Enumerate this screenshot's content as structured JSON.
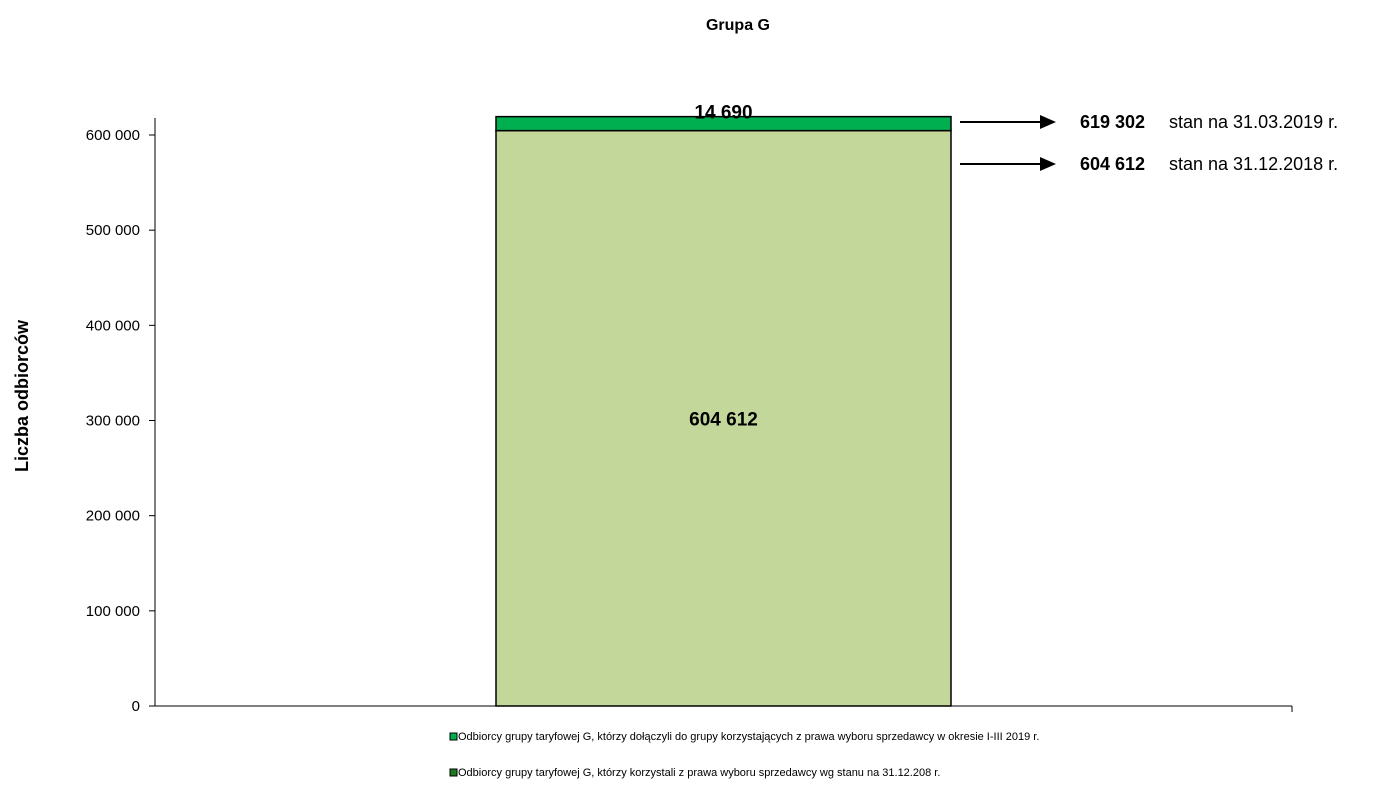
{
  "chart_data": {
    "type": "bar",
    "stacked": true,
    "title": "Grupa G",
    "xlabel": "",
    "ylabel": "Liczba odbiorców",
    "ylim": [
      0,
      600000
    ],
    "ytick_values": [
      0,
      100000,
      200000,
      300000,
      400000,
      500000,
      600000
    ],
    "ytick_labels": [
      "0",
      "100 000",
      "200 000",
      "300 000",
      "400 000",
      "500 000",
      "600 000"
    ],
    "categories": [
      ""
    ],
    "grid": false,
    "legend_position": "bottom",
    "series": [
      {
        "name": "Odbiorcy grupy taryfowej G, którzy korzystali z prawa wyboru sprzedawcy wg stanu na 31.12.208 r.",
        "values": [
          604612
        ],
        "data_label": "604 612",
        "color": "#c4d79b"
      },
      {
        "name": "Odbiorcy grupy taryfowej G, którzy dołączyli do grupy korzystających z  prawa wyboru sprzedawcy w okresie I-III 2019 r.",
        "values": [
          14690
        ],
        "data_label": "14 690",
        "color": "#00b050"
      }
    ],
    "legend": [
      {
        "label": "Odbiorcy grupy taryfowej G, którzy dołączyli do grupy korzystających z  prawa wyboru sprzedawcy w okresie I-III 2019 r.",
        "color": "#00b050"
      },
      {
        "label": "Odbiorcy grupy taryfowej G, którzy korzystali z prawa wyboru sprzedawcy wg stanu na 31.12.208 r.",
        "color": "#1f7a1f"
      }
    ],
    "annotations": [
      {
        "value": 619302,
        "value_label": "619 302",
        "text": "stan na 31.03.2019 r."
      },
      {
        "value": 604612,
        "value_label": "604 612",
        "text": "stan na 31.12.2018 r."
      }
    ]
  }
}
